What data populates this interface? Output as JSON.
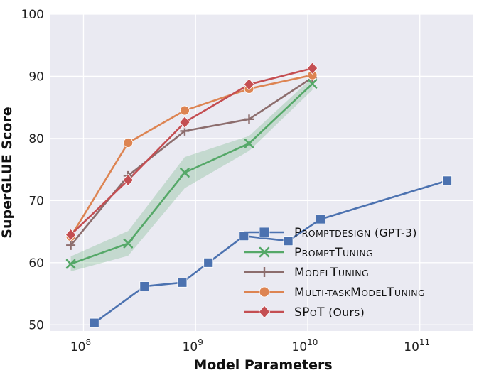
{
  "chart_data": {
    "type": "line",
    "title": "",
    "xlabel": "Model Parameters",
    "ylabel": "SuperGLUE Score",
    "x_scale": "log",
    "xlim": [
      50000000,
      300000000000
    ],
    "ylim": [
      49,
      100
    ],
    "grid": true,
    "legend_position": "bottom-right",
    "x_ticks": [
      {
        "value": 100000000,
        "base": "10",
        "exp": "8"
      },
      {
        "value": 1000000000,
        "base": "10",
        "exp": "9"
      },
      {
        "value": 10000000000,
        "base": "10",
        "exp": "10"
      },
      {
        "value": 100000000000,
        "base": "10",
        "exp": "11"
      }
    ],
    "y_ticks": [
      50,
      60,
      70,
      80,
      90,
      100
    ],
    "series": [
      {
        "name": "PROMPTDESIGN (GPT-3)",
        "legend_main": "P",
        "legend_rest": "ROMPTDESIGN",
        "legend_suffix": " (GPT-3)",
        "color": "#4c72b0",
        "marker": "square",
        "points": [
          {
            "x": 125000000,
            "y": 50.3
          },
          {
            "x": 350000000,
            "y": 56.2
          },
          {
            "x": 760000000,
            "y": 56.8
          },
          {
            "x": 1300000000,
            "y": 60.0
          },
          {
            "x": 2700000000,
            "y": 64.3
          },
          {
            "x": 6700000000,
            "y": 63.5
          },
          {
            "x": 13000000000,
            "y": 67.0
          },
          {
            "x": 175000000000,
            "y": 73.2
          }
        ]
      },
      {
        "name": "PROMPTTUNING",
        "legend_main": "P",
        "legend_rest": "ROMPT",
        "legend_main2": "T",
        "legend_rest2": "UNING",
        "color": "#55a868",
        "marker": "x",
        "band": [
          1.2,
          2.0,
          2.5,
          1.2,
          1.0
        ],
        "points": [
          {
            "x": 77000000,
            "y": 59.8
          },
          {
            "x": 250000000,
            "y": 63.1
          },
          {
            "x": 800000000,
            "y": 74.5
          },
          {
            "x": 3000000000,
            "y": 79.2
          },
          {
            "x": 11000000000,
            "y": 88.8
          }
        ]
      },
      {
        "name": "MODELTUNING",
        "legend_main": "M",
        "legend_rest": "ODEL",
        "legend_main2": "T",
        "legend_rest2": "UNING",
        "color": "#8c6d6d",
        "marker": "plus",
        "points": [
          {
            "x": 77000000,
            "y": 62.8
          },
          {
            "x": 250000000,
            "y": 74.0
          },
          {
            "x": 800000000,
            "y": 81.2
          },
          {
            "x": 3000000000,
            "y": 83.1
          },
          {
            "x": 11000000000,
            "y": 89.8
          }
        ]
      },
      {
        "name": "MULTI-TASKMODELTUNING",
        "legend_main": "M",
        "legend_rest": "ULTI-TASK",
        "legend_main2": "M",
        "legend_rest2": "ODEL",
        "legend_main3": "T",
        "legend_rest3": "UNING",
        "color": "#dd8452",
        "marker": "circle",
        "points": [
          {
            "x": 77000000,
            "y": 64.2
          },
          {
            "x": 250000000,
            "y": 79.3
          },
          {
            "x": 800000000,
            "y": 84.5
          },
          {
            "x": 3000000000,
            "y": 88.0
          },
          {
            "x": 11000000000,
            "y": 90.2
          }
        ]
      },
      {
        "name": "SPoT (Ours)",
        "legend_main": "SP",
        "legend_rest": "O",
        "legend_main2": "T",
        "legend_rest2": "",
        "legend_suffix": " (Ours)",
        "color": "#c44e52",
        "marker": "diamond",
        "points": [
          {
            "x": 77000000,
            "y": 64.5
          },
          {
            "x": 250000000,
            "y": 73.3
          },
          {
            "x": 800000000,
            "y": 82.6
          },
          {
            "x": 3000000000,
            "y": 88.7
          },
          {
            "x": 11000000000,
            "y": 91.3
          }
        ]
      }
    ]
  }
}
